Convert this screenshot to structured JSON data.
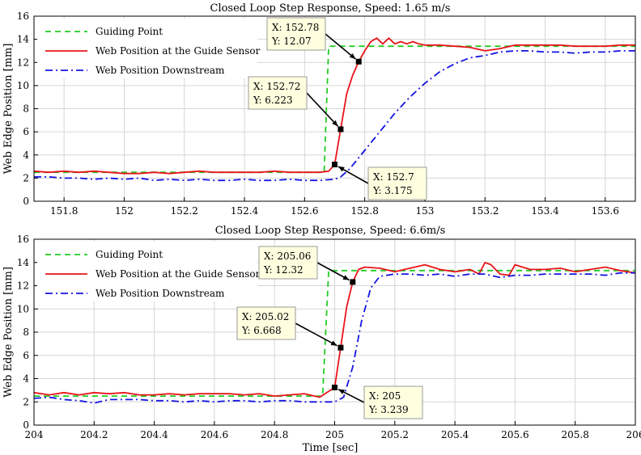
{
  "chart_data": [
    {
      "type": "line",
      "title": "Closed Loop Step Response, Speed: 1.65 m/s",
      "xlabel": "",
      "ylabel": "Web Edge Position [mm]",
      "xlim": [
        151.7,
        153.7
      ],
      "ylim": [
        0,
        16
      ],
      "xticks": [
        "151.8",
        "152",
        "152.2",
        "152.4",
        "152.6",
        "152.8",
        "153",
        "153.2",
        "153.4",
        "153.6"
      ],
      "xtick_values": [
        151.8,
        152.0,
        152.2,
        152.4,
        152.6,
        152.8,
        153.0,
        153.2,
        153.4,
        153.6
      ],
      "yticks": [
        "0",
        "2",
        "4",
        "6",
        "8",
        "10",
        "12",
        "14",
        "16"
      ],
      "ytick_values": [
        0,
        2,
        4,
        6,
        8,
        10,
        12,
        14,
        16
      ],
      "grid": true,
      "legend": "top-left",
      "series": [
        {
          "name": "Guiding Point",
          "color": "#22cc22",
          "style": "dashed",
          "x": [
            151.7,
            152.665,
            152.665,
            152.68,
            152.685,
            153.7
          ],
          "y": [
            2.5,
            2.5,
            2.5,
            13.4,
            13.4,
            13.4
          ]
        },
        {
          "name": "Web Position at the Guide Sensor",
          "color": "#e8141a",
          "style": "solid",
          "x": [
            151.7,
            151.75,
            151.8,
            151.85,
            151.9,
            151.95,
            152.0,
            152.05,
            152.1,
            152.15,
            152.2,
            152.25,
            152.3,
            152.35,
            152.4,
            152.45,
            152.5,
            152.55,
            152.6,
            152.65,
            152.68,
            152.7,
            152.72,
            152.74,
            152.76,
            152.78,
            152.8,
            152.82,
            152.84,
            152.86,
            152.88,
            152.9,
            152.92,
            152.94,
            152.96,
            152.98,
            153.0,
            153.05,
            153.1,
            153.15,
            153.2,
            153.25,
            153.3,
            153.35,
            153.4,
            153.45,
            153.5,
            153.55,
            153.6,
            153.65,
            153.7
          ],
          "y": [
            2.6,
            2.5,
            2.6,
            2.5,
            2.6,
            2.5,
            2.4,
            2.4,
            2.5,
            2.4,
            2.5,
            2.6,
            2.5,
            2.5,
            2.5,
            2.5,
            2.6,
            2.5,
            2.5,
            2.5,
            2.6,
            3.175,
            6.223,
            9.3,
            10.9,
            12.07,
            13.0,
            13.8,
            14.1,
            13.6,
            14.1,
            13.6,
            13.8,
            13.6,
            13.8,
            13.6,
            13.5,
            13.5,
            13.4,
            13.3,
            13.0,
            13.2,
            13.5,
            13.5,
            13.5,
            13.5,
            13.4,
            13.4,
            13.4,
            13.5,
            13.5
          ]
        },
        {
          "name": "Web Position Downstream",
          "color": "#1414e0",
          "style": "dashdot",
          "x": [
            151.7,
            151.75,
            151.8,
            151.85,
            151.9,
            151.95,
            152.0,
            152.05,
            152.1,
            152.15,
            152.2,
            152.25,
            152.3,
            152.35,
            152.4,
            152.45,
            152.5,
            152.55,
            152.6,
            152.65,
            152.7,
            152.72,
            152.75,
            152.8,
            152.85,
            152.9,
            152.95,
            153.0,
            153.05,
            153.1,
            153.15,
            153.2,
            153.25,
            153.3,
            153.35,
            153.4,
            153.45,
            153.5,
            153.55,
            153.6,
            153.65,
            153.7
          ],
          "y": [
            2.1,
            2.1,
            2.0,
            2.0,
            1.9,
            2.0,
            1.9,
            2.0,
            1.8,
            1.9,
            1.8,
            1.9,
            1.8,
            1.8,
            1.9,
            1.8,
            1.8,
            1.9,
            1.8,
            1.8,
            1.9,
            2.1,
            2.8,
            4.4,
            6.0,
            7.6,
            9.0,
            10.2,
            11.2,
            11.9,
            12.4,
            12.6,
            12.9,
            13.0,
            13.0,
            12.9,
            12.9,
            12.8,
            12.9,
            12.9,
            13.0,
            13.0
          ]
        }
      ],
      "annotations": [
        {
          "x": 152.7,
          "y": 3.175,
          "label_x": "X: 152.7",
          "label_y": "Y: 3.175"
        },
        {
          "x": 152.72,
          "y": 6.223,
          "label_x": "X: 152.72",
          "label_y": "Y: 6.223"
        },
        {
          "x": 152.78,
          "y": 12.07,
          "label_x": "X: 152.78",
          "label_y": "Y: 12.07"
        }
      ]
    },
    {
      "type": "line",
      "title": "Closed Loop Step Response, Speed: 6.6m/s",
      "xlabel": "Time [sec]",
      "ylabel": "Web Edge Position [mm]",
      "xlim": [
        204,
        206
      ],
      "ylim": [
        0,
        16
      ],
      "xticks": [
        "204",
        "204.2",
        "204.4",
        "204.6",
        "204.8",
        "205",
        "205.2",
        "205.4",
        "205.6",
        "205.8",
        "206"
      ],
      "xtick_values": [
        204.0,
        204.2,
        204.4,
        204.6,
        204.8,
        205.0,
        205.2,
        205.4,
        205.6,
        205.8,
        206.0
      ],
      "yticks": [
        "0",
        "2",
        "4",
        "6",
        "8",
        "10",
        "12",
        "14",
        "16"
      ],
      "ytick_values": [
        0,
        2,
        4,
        6,
        8,
        10,
        12,
        14,
        16
      ],
      "grid": true,
      "legend": "top-left",
      "series": [
        {
          "name": "Guiding Point",
          "color": "#22cc22",
          "style": "dashed",
          "x": [
            204.0,
            204.96,
            204.96,
            204.98,
            205.0,
            206.0
          ],
          "y": [
            2.5,
            2.5,
            2.5,
            13.3,
            13.3,
            13.3
          ]
        },
        {
          "name": "Web Position at the Guide Sensor",
          "color": "#e8141a",
          "style": "solid",
          "x": [
            204.0,
            204.05,
            204.1,
            204.15,
            204.2,
            204.25,
            204.3,
            204.35,
            204.4,
            204.45,
            204.5,
            204.55,
            204.6,
            204.65,
            204.7,
            204.75,
            204.8,
            204.85,
            204.9,
            204.95,
            204.98,
            205.0,
            205.02,
            205.04,
            205.06,
            205.08,
            205.1,
            205.15,
            205.2,
            205.25,
            205.3,
            205.35,
            205.4,
            205.45,
            205.48,
            205.5,
            205.52,
            205.55,
            205.58,
            205.6,
            205.65,
            205.7,
            205.75,
            205.8,
            205.85,
            205.9,
            205.95,
            206.0
          ],
          "y": [
            2.8,
            2.6,
            2.8,
            2.6,
            2.8,
            2.7,
            2.8,
            2.6,
            2.6,
            2.7,
            2.6,
            2.7,
            2.7,
            2.7,
            2.6,
            2.7,
            2.5,
            2.6,
            2.7,
            2.4,
            2.9,
            3.239,
            6.668,
            10.2,
            12.32,
            13.4,
            13.6,
            13.5,
            13.2,
            13.5,
            13.8,
            13.4,
            13.2,
            13.4,
            13.0,
            14.0,
            13.8,
            13.0,
            12.9,
            13.8,
            13.4,
            13.4,
            13.5,
            13.2,
            13.4,
            13.6,
            13.3,
            13.1
          ]
        },
        {
          "name": "Web Position Downstream",
          "color": "#1414e0",
          "style": "dashdot",
          "x": [
            204.0,
            204.05,
            204.1,
            204.15,
            204.2,
            204.25,
            204.3,
            204.35,
            204.4,
            204.45,
            204.5,
            204.55,
            204.6,
            204.65,
            204.7,
            204.75,
            204.8,
            204.85,
            204.9,
            204.95,
            205.0,
            205.03,
            205.06,
            205.09,
            205.12,
            205.15,
            205.2,
            205.25,
            205.3,
            205.35,
            205.4,
            205.45,
            205.5,
            205.55,
            205.6,
            205.65,
            205.7,
            205.75,
            205.8,
            205.85,
            205.9,
            205.95,
            206.0
          ],
          "y": [
            2.3,
            2.4,
            2.2,
            2.1,
            1.9,
            2.2,
            2.2,
            2.2,
            2.1,
            2.1,
            2.0,
            2.1,
            2.0,
            2.1,
            2.1,
            2.0,
            2.1,
            2.1,
            2.0,
            2.0,
            2.0,
            2.4,
            5.0,
            9.0,
            11.8,
            12.8,
            13.0,
            13.0,
            12.9,
            13.0,
            12.8,
            13.0,
            13.0,
            12.7,
            12.9,
            12.9,
            13.0,
            13.0,
            13.0,
            13.0,
            12.9,
            13.1,
            13.1
          ]
        }
      ],
      "annotations": [
        {
          "x": 205.0,
          "y": 3.239,
          "label_x": "X: 205",
          "label_y": "Y: 3.239"
        },
        {
          "x": 205.02,
          "y": 6.668,
          "label_x": "X: 205.02",
          "label_y": "Y: 6.668"
        },
        {
          "x": 205.06,
          "y": 12.32,
          "label_x": "X: 205.06",
          "label_y": "Y: 12.32"
        }
      ]
    }
  ]
}
